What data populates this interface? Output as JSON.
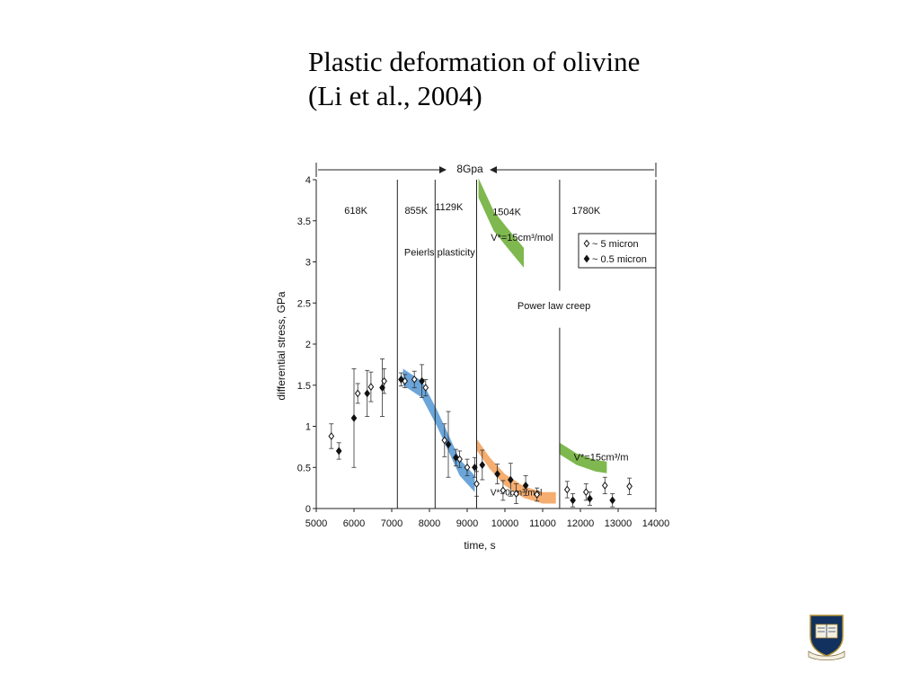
{
  "slide": {
    "title_line1": "Plastic deformation of olivine",
    "title_line2": "(Li et al., 2004)"
  },
  "chart_data": {
    "type": "scatter",
    "xlabel": "time, s",
    "ylabel": "differential stress, GPa",
    "xlim": [
      5000,
      14000
    ],
    "ylim": [
      0,
      4
    ],
    "xticks": [
      5000,
      6000,
      7000,
      8000,
      9000,
      10000,
      11000,
      12000,
      13000,
      14000
    ],
    "yticks": [
      0,
      0.5,
      1,
      1.5,
      2,
      2.5,
      3,
      3.5,
      4
    ],
    "pressure_label": "8Gpa",
    "boundaries": [
      7150,
      8150,
      9250
    ],
    "dashed_boundary": 11450,
    "temperature_labels": [
      {
        "label": "618K",
        "x": 6050,
        "y": 3.63
      },
      {
        "label": "855K",
        "x": 7650,
        "y": 3.63
      },
      {
        "label": "1129K",
        "x": 8520,
        "y": 3.67
      },
      {
        "label": "1504K",
        "x": 10050,
        "y": 3.61
      },
      {
        "label": "1780K",
        "x": 12150,
        "y": 3.63
      }
    ],
    "annotations": [
      {
        "text": "Peierls plasticity",
        "x": 8270,
        "y": 3.12
      },
      {
        "text": "V*=15cm³/mol",
        "x": 10450,
        "y": 3.3
      },
      {
        "text": "Power law creep",
        "x": 11300,
        "y": 2.47
      },
      {
        "text": "V*=15cm³/m",
        "x": 12550,
        "y": 0.63
      },
      {
        "text": "V*=0cm³/mol",
        "x": 10300,
        "y": 0.2
      }
    ],
    "legend": {
      "position": "top-right",
      "entries": [
        "~ 5 micron",
        "~ 0.5 micron"
      ]
    },
    "series": [
      {
        "name": "~ 5 micron",
        "marker": "open-diamond",
        "points": [
          {
            "x": 5400,
            "y": 0.88,
            "err": 0.15
          },
          {
            "x": 6100,
            "y": 1.4,
            "err": 0.12
          },
          {
            "x": 6450,
            "y": 1.48,
            "err": 0.18
          },
          {
            "x": 6800,
            "y": 1.55,
            "err": 0.15
          },
          {
            "x": 7350,
            "y": 1.55,
            "err": 0.08
          },
          {
            "x": 7600,
            "y": 1.57,
            "err": 0.1
          },
          {
            "x": 7900,
            "y": 1.47,
            "err": 0.1
          },
          {
            "x": 8400,
            "y": 0.83,
            "err": 0.2
          },
          {
            "x": 8800,
            "y": 0.6,
            "err": 0.1
          },
          {
            "x": 9000,
            "y": 0.5,
            "err": 0.1
          },
          {
            "x": 9250,
            "y": 0.3,
            "err": 0.15
          },
          {
            "x": 9950,
            "y": 0.22,
            "err": 0.12
          },
          {
            "x": 10300,
            "y": 0.18,
            "err": 0.12
          },
          {
            "x": 10850,
            "y": 0.17,
            "err": 0.08
          },
          {
            "x": 11650,
            "y": 0.23,
            "err": 0.1
          },
          {
            "x": 12150,
            "y": 0.2,
            "err": 0.1
          },
          {
            "x": 12650,
            "y": 0.28,
            "err": 0.1
          },
          {
            "x": 13300,
            "y": 0.27,
            "err": 0.1
          }
        ]
      },
      {
        "name": "~ 0.5 micron",
        "marker": "filled-diamond",
        "points": [
          {
            "x": 5600,
            "y": 0.7,
            "err": 0.1
          },
          {
            "x": 6000,
            "y": 1.1,
            "err": 0.6
          },
          {
            "x": 6350,
            "y": 1.4,
            "err": 0.28
          },
          {
            "x": 6750,
            "y": 1.47,
            "err": 0.35
          },
          {
            "x": 7250,
            "y": 1.57,
            "err": 0.08
          },
          {
            "x": 7800,
            "y": 1.55,
            "err": 0.2
          },
          {
            "x": 8500,
            "y": 0.78,
            "err": 0.4
          },
          {
            "x": 8700,
            "y": 0.62,
            "err": 0.1
          },
          {
            "x": 9200,
            "y": 0.5,
            "err": 0.12
          },
          {
            "x": 9400,
            "y": 0.53,
            "err": 0.18
          },
          {
            "x": 9800,
            "y": 0.42,
            "err": 0.12
          },
          {
            "x": 10150,
            "y": 0.35,
            "err": 0.2
          },
          {
            "x": 10550,
            "y": 0.28,
            "err": 0.12
          },
          {
            "x": 11800,
            "y": 0.1,
            "err": 0.08
          },
          {
            "x": 12250,
            "y": 0.12,
            "err": 0.08
          },
          {
            "x": 12850,
            "y": 0.1,
            "err": 0.08
          }
        ]
      }
    ],
    "bands": [
      {
        "color": "#5b9bd5",
        "centerline": [
          [
            7300,
            1.6
          ],
          [
            7800,
            1.45
          ],
          [
            8200,
            1.1
          ],
          [
            8500,
            0.8
          ],
          [
            8800,
            0.5
          ],
          [
            9200,
            0.3
          ]
        ],
        "half_width": 0.1
      },
      {
        "color": "#f4a460",
        "centerline": [
          [
            9250,
            0.78
          ],
          [
            9600,
            0.55
          ],
          [
            10000,
            0.35
          ],
          [
            10500,
            0.2
          ],
          [
            11000,
            0.13
          ],
          [
            11350,
            0.13
          ]
        ],
        "half_width": 0.07
      },
      {
        "color": "#70b03c",
        "centerline": [
          [
            9300,
            3.9
          ],
          [
            9700,
            3.5
          ],
          [
            10050,
            3.3
          ],
          [
            10500,
            3.05
          ]
        ],
        "half_width": 0.12
      },
      {
        "color": "#70b03c",
        "centerline": [
          [
            11450,
            0.73
          ],
          [
            11900,
            0.6
          ],
          [
            12400,
            0.52
          ],
          [
            12700,
            0.5
          ]
        ],
        "half_width": 0.07
      }
    ]
  },
  "logo": {
    "text": "LUX ET VERITAS"
  }
}
